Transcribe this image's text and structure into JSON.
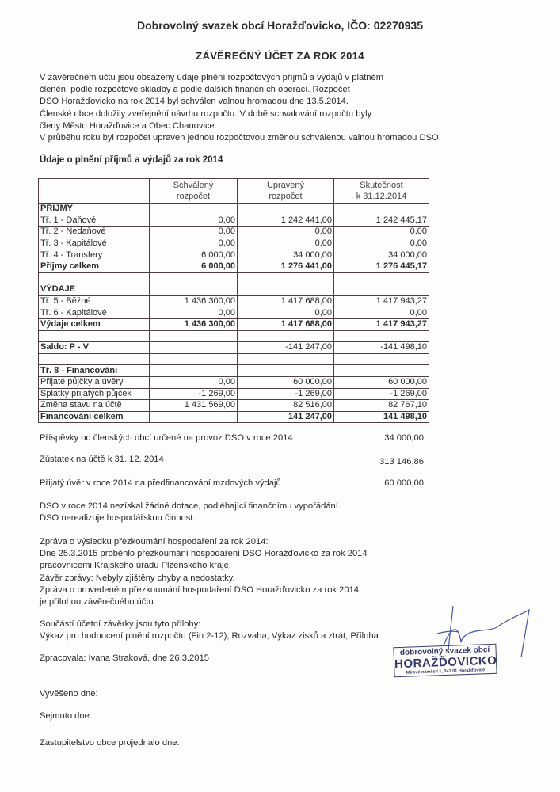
{
  "header": {
    "title": "Dobrovolný svazek obcí Horažďovicko, IČO: 02270935",
    "subtitle": "ZÁVĚREČNÝ ÚČET ZA ROK 2014"
  },
  "intro": [
    "V závěrečném účtu jsou obsaženy údaje plnění rozpočtových příjmů a výdajů v platném",
    "členění podle rozpočtové skladby a podle dalších finančních operací. Rozpočet",
    "DSO Horažďovicko na rok 2014 byl schválen valnou hromadou dne 13.5.2014.",
    "Členské obce doložily zveřejnění návrhu rozpočtu. V době schvalování rozpočtu byly",
    "členy Město Horažďovice a Obec Chanovice.",
    "V průběhu roku byl rozpočet upraven jednou rozpočtovou změnou schválenou valnou hromadou DSO."
  ],
  "section_title": "Údaje o plnění příjmů a výdajů za rok 2014",
  "table": {
    "headers": [
      "",
      "Schválený\nrozpočet",
      "Upravený\nrozpočet",
      "Skutečnost\nk 31.12.2014"
    ],
    "rows": [
      {
        "cells": [
          "PŘÍJMY",
          "",
          "",
          ""
        ],
        "bold": true
      },
      {
        "cells": [
          "Tř. 1 - Daňové",
          "0,00",
          "1 242 441,00",
          "1 242 445,17"
        ]
      },
      {
        "cells": [
          "Tř. 2 - Nedaňové",
          "0,00",
          "0,00",
          "0,00"
        ]
      },
      {
        "cells": [
          "Tř. 3 - Kapitálové",
          "0,00",
          "0,00",
          "0,00"
        ]
      },
      {
        "cells": [
          "Tř. 4 - Transfery",
          "6 000,00",
          "34 000,00",
          "34 000,00"
        ]
      },
      {
        "cells": [
          "Příjmy celkem",
          "6 000,00",
          "1 276 441,00",
          "1 276 445,17"
        ],
        "bold": true
      },
      {
        "cells": [
          "",
          "",
          "",
          ""
        ]
      },
      {
        "cells": [
          "VÝDAJE",
          "",
          "",
          ""
        ],
        "bold": true
      },
      {
        "cells": [
          "Tř. 5 - Běžné",
          "1 436 300,00",
          "1 417 688,00",
          "1 417 943,27"
        ]
      },
      {
        "cells": [
          "Tř. 6 - Kapitálové",
          "0,00",
          "0,00",
          "0,00"
        ]
      },
      {
        "cells": [
          "Výdaje celkem",
          "1 436 300,00",
          "1 417 688,00",
          "1 417 943,27"
        ],
        "bold": true
      },
      {
        "cells": [
          "",
          "",
          "",
          ""
        ]
      },
      {
        "cells": [
          "Saldo: P - V",
          "",
          "-141 247,00",
          "-141 498,10"
        ],
        "boldLabel": true
      },
      {
        "cells": [
          "",
          "",
          "",
          ""
        ]
      },
      {
        "cells": [
          "Tř. 8 -  Financování",
          "",
          "",
          ""
        ],
        "bold": true
      },
      {
        "cells": [
          "Přijaté půjčky a úvěry",
          "0,00",
          "60 000,00",
          "60 000,00"
        ]
      },
      {
        "cells": [
          "Splátky přijatých půjček",
          "-1 269,00",
          "-1 269,00",
          "-1 269,00"
        ]
      },
      {
        "cells": [
          "Změna stavu na účtě",
          "1 431 569,00",
          "82 516,00",
          "82 767,10"
        ]
      },
      {
        "cells": [
          "Financování celkem",
          "",
          "141 247,00",
          "141 498,10"
        ],
        "bold": true
      }
    ]
  },
  "summary": [
    {
      "label": "Příspěvky od členských obcí určené na provoz DSO v roce 2014",
      "value": "34 000,00"
    },
    {
      "label": "Zůstatek na účtě k 31. 12. 2014",
      "value": "313 146,86"
    },
    {
      "label": "Přijatý úvěr v roce 2014 na předfinancování mzdových výdajů",
      "value": "60 000,00"
    }
  ],
  "notes": [
    "DSO v roce 2014 nezískal žádné dotace, podléhající finančnímu vypořádání.",
    "DSO nerealizuje hospodářskou činnost."
  ],
  "review": [
    "Zpráva o výsledku přezkoumání hospodaření za rok 2014:",
    "Dne 25.3.2015 proběhlo přezkoumání hospodaření DSO Horažďovicko za rok 2014",
    "pracovnicemi Krajského úřadu Plzeňského kraje.",
    "Závěr zprávy: Nebyly zjištěny chyby a nedostatky.",
    "Zpráva o provedeném přezkoumání hospodaření DSO Horažďovicko za rok 2014",
    "je přílohou závěrečného účtu."
  ],
  "attachments": [
    "Součástí účetní závěrky jsou tyto přílohy:",
    "Výkaz pro hodnocení plnění rozpočtu (Fin 2-12), Rozvaha, Výkaz zisků a ztrát, Příloha"
  ],
  "prepared": "Zpracovala: Ivana Straková, dne 26.3.2015",
  "posted": "Vyvěšeno dne:",
  "removed": "Sejmuto dne:",
  "council": "Zastupitelstvo obce projednalo dne:",
  "stamp": {
    "line1": "dobrovolný svazek obcí",
    "line2": "HORAŽĎOVICKO",
    "line3": "Mírové náměstí 1, 341 01 Horažďovice"
  }
}
